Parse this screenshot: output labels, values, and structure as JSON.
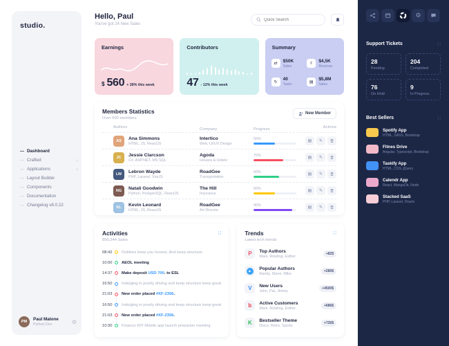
{
  "brand": {
    "logo": "studio."
  },
  "icons": {
    "dash": "—",
    "chevron": "›",
    "grid": "∷",
    "gear": "⚙",
    "swap": "⇄",
    "peace": "✌",
    "refresh": "↻",
    "screen": "▤",
    "details": "▤",
    "edit": "✎",
    "play": "▶"
  },
  "left_sidebar": {
    "menu": [
      {
        "label": "Dashboard"
      },
      {
        "label": "Crafted"
      },
      {
        "label": "Applications"
      },
      {
        "label": "Layout Builder"
      },
      {
        "label": "Components"
      },
      {
        "label": "Documentation"
      },
      {
        "label": "Changelog v8.0.22"
      }
    ],
    "user": {
      "name": "Paul Malone",
      "role": "Python Dev",
      "initials": "PM"
    }
  },
  "header": {
    "greeting": "Hello, Paul",
    "subtitle": "You've got 24 New Sales",
    "search_placeholder": "Quick Search"
  },
  "stat_cards": {
    "earnings": {
      "title": "Earnings",
      "currency": "$",
      "value": "560",
      "delta": "+ 28% this week"
    },
    "contributors": {
      "title": "Contributors",
      "value": "47",
      "delta": "- 12% this week",
      "spark": [
        3,
        2,
        2,
        4,
        7,
        10,
        13,
        11,
        8,
        10,
        8,
        6,
        8,
        5,
        4,
        2,
        3
      ]
    },
    "summary": {
      "title": "Summary",
      "items": [
        {
          "value": "$50K",
          "label": "Sales"
        },
        {
          "value": "$4,5K",
          "label": "Revenue"
        },
        {
          "value": "40",
          "label": "Tasks"
        },
        {
          "value": "$5,8M",
          "label": "Sales"
        }
      ]
    }
  },
  "members": {
    "title": "Members Statistics",
    "subtitle": "Over 500 members",
    "new_member": "New Member",
    "columns": {
      "authors": "Authors",
      "company": "Company",
      "progress": "Progress",
      "actions": "Actions"
    },
    "rows": [
      {
        "name": "Ana Simmons",
        "skills": "HTML, JS, ReactJS",
        "company": "Intertico",
        "industry": "Web, UI/UX Design",
        "percent": "50%",
        "initials": "AS",
        "bar_style": "width:50%;background:#3699ff",
        "avatar_style": "background:#e0a47a"
      },
      {
        "name": "Jessie Clarcson",
        "skills": "C#, ASP.NET, MS SQL",
        "company": "Agoda",
        "industry": "Houses & Hotels",
        "percent": "70%",
        "initials": "JC",
        "bar_style": "width:70%;background:#f64e60",
        "avatar_style": "background:#d8b04e"
      },
      {
        "name": "Lebron Wayde",
        "skills": "PHP, Laravel, VueJS",
        "company": "RoadGee",
        "industry": "Transportation",
        "percent": "60%",
        "initials": "LW",
        "bar_style": "width:60%;background:#2fd087",
        "avatar_style": "background:#44597e"
      },
      {
        "name": "Natali Goodwin",
        "skills": "Python, PostgreSQL, ReactJS",
        "company": "The Hill",
        "industry": "Insurance",
        "percent": "50%",
        "initials": "NG",
        "bar_style": "width:50%;background:#ffc700",
        "avatar_style": "background:#7d5a52"
      },
      {
        "name": "Kevin Leonard",
        "skills": "HTML, JS, ReactJS",
        "company": "RoadGee",
        "industry": "Art Director",
        "percent": "90%",
        "initials": "KL",
        "bar_style": "width:90%;background:#8147f6",
        "avatar_style": "background:#9ec2e2"
      }
    ]
  },
  "activities": {
    "title": "Activities",
    "subtitle": "890,344 Sales",
    "items": [
      {
        "time": "08:42",
        "text1": "Outlines keep you honest. And keep structure",
        "link": "",
        "text2": "",
        "dot_style": "border-color:#ffc700"
      },
      {
        "time": "10:00",
        "text1": "AEOL meeting",
        "link": "",
        "text2": "",
        "dot_style": "border-color:#2fd087"
      },
      {
        "time": "14:37",
        "text1": "Make deposit ",
        "link": "USD 700",
        "text2": ". to ESL",
        "dot_style": "border-color:#f64e60"
      },
      {
        "time": "16:50",
        "text1": "Indulging in poorly driving and keep structure keep great",
        "link": "",
        "text2": "",
        "dot_style": "border-color:#3699ff"
      },
      {
        "time": "21:03",
        "text1": "New order placed ",
        "link": "#XF-2356",
        "text2": ".",
        "dot_style": "border-color:#f64e60"
      },
      {
        "time": "16:50",
        "text1": "Indulging in poorly driving and keep structure keep great",
        "link": "",
        "text2": "",
        "dot_style": "border-color:#3699ff"
      },
      {
        "time": "21:03",
        "text1": "New order placed ",
        "link": "#XF-2356",
        "text2": ".",
        "dot_style": "border-color:#f64e60"
      },
      {
        "time": "10:30",
        "text1": "Finance KPI Mobile app launch preparion meeting",
        "link": "",
        "text2": "",
        "dot_style": "border-color:#2fd087"
      }
    ]
  },
  "trends": {
    "title": "Trends",
    "subtitle": "Latest tech trends",
    "items": [
      {
        "name": "Top Authors",
        "desc": "Mark, Rowling, Esther",
        "badge": "+82$",
        "glyph": "P",
        "glyph_style": "color:#f0506a"
      },
      {
        "name": "Popular Authors",
        "desc": "Randy, Steve, Mike",
        "badge": "+280$",
        "glyph": "▶",
        "glyph_style": "background:#3ba3f8;color:#fff;border-radius:50%;width:10px;height:10px;line-height:10px;font-size:4px;text-align:center"
      },
      {
        "name": "New Users",
        "desc": "John, Pat, Jimmy",
        "badge": "+4500$",
        "glyph": "V",
        "glyph_style": "color:#3b8ef3"
      },
      {
        "name": "Active Customers",
        "desc": "Mark, Rowling, Esther",
        "badge": "+686$",
        "glyph": "b",
        "glyph_style": "color:#e93a4a"
      },
      {
        "name": "Bestseller Theme",
        "desc": "Disco, Retro, Sports",
        "badge": "+726$",
        "glyph": "K",
        "glyph_style": "color:#2dbd5f"
      }
    ]
  },
  "right_sidebar": {
    "tickets": {
      "title": "Support Tickets",
      "stats": [
        {
          "value": "28",
          "label": "Pending"
        },
        {
          "value": "204",
          "label": "Completed"
        },
        {
          "value": "76",
          "label": "On Hold"
        },
        {
          "value": "9",
          "label": "In Progress"
        }
      ]
    },
    "best_sellers": {
      "title": "Best Sellers",
      "items": [
        {
          "name": "Spotify App",
          "desc": "HTML, SASS, Bootstrap",
          "thumb_style": "background:#f8c94e"
        },
        {
          "name": "Fitnes Drive",
          "desc": "Angular, Typescript, Bootstrap",
          "thumb_style": "background:#f2b9c8"
        },
        {
          "name": "Taskify App",
          "desc": "HTML, CSS, jQuery",
          "thumb_style": "background:#4291f5"
        },
        {
          "name": "Calendr App",
          "desc": "React, MangoDb, Node",
          "thumb_style": "background:#eaa9cc"
        },
        {
          "name": "Stacked SaaS",
          "desc": "PHP, Laravel, Oracle",
          "thumb_style": "background:#f7cdd7"
        }
      ]
    }
  }
}
